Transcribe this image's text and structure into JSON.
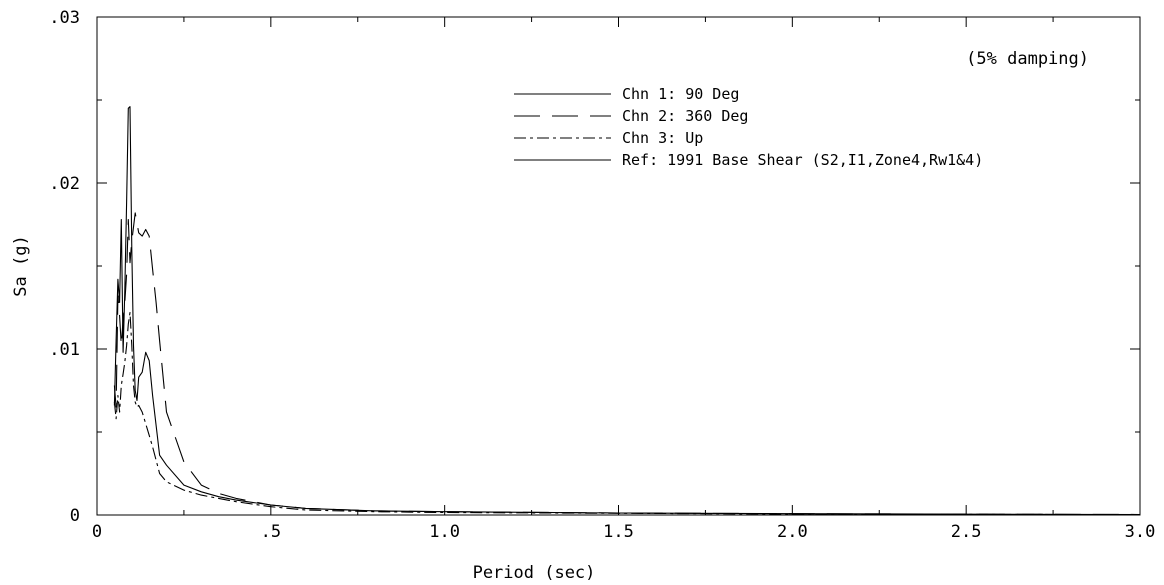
{
  "chart_data": {
    "type": "line",
    "title": "",
    "xlabel": "Period (sec)",
    "ylabel": "Sa (g)",
    "xlim": [
      0,
      3.0
    ],
    "ylim": [
      0,
      0.03
    ],
    "grid": false,
    "legend_position": "top-center",
    "annotation": "(5% damping)",
    "x_ticks": [
      {
        "value": 0,
        "label": "0"
      },
      {
        "value": 0.5,
        "label": ".5"
      },
      {
        "value": 1.0,
        "label": "1.0"
      },
      {
        "value": 1.5,
        "label": "1.5"
      },
      {
        "value": 2.0,
        "label": "2.0"
      },
      {
        "value": 2.5,
        "label": "2.5"
      },
      {
        "value": 3.0,
        "label": "3.0"
      }
    ],
    "y_ticks": [
      {
        "value": 0,
        "label": "0"
      },
      {
        "value": 0.01,
        "label": ".01"
      },
      {
        "value": 0.02,
        "label": ".02"
      },
      {
        "value": 0.03,
        "label": ".03"
      }
    ],
    "series": [
      {
        "name": "Chn 1: 90 Deg",
        "dash": "solid",
        "x": [
          0.05,
          0.055,
          0.06,
          0.065,
          0.07,
          0.075,
          0.08,
          0.085,
          0.09,
          0.095,
          0.1,
          0.105,
          0.11,
          0.115,
          0.12,
          0.13,
          0.14,
          0.15,
          0.16,
          0.18,
          0.2,
          0.25,
          0.3,
          0.35,
          0.4,
          0.5,
          0.6,
          0.8,
          1.0,
          1.5,
          2.0,
          2.5,
          3.0
        ],
        "y": [
          0.0066,
          0.0105,
          0.0142,
          0.0128,
          0.0178,
          0.0098,
          0.0135,
          0.0188,
          0.0245,
          0.0246,
          0.016,
          0.0102,
          0.0075,
          0.0069,
          0.0083,
          0.0086,
          0.0098,
          0.0093,
          0.0072,
          0.0036,
          0.003,
          0.0018,
          0.0014,
          0.0011,
          0.0009,
          0.0006,
          0.0004,
          0.00025,
          0.0002,
          0.00012,
          8e-05,
          5e-05,
          3e-05
        ]
      },
      {
        "name": "Chn 2: 360 Deg",
        "dash": "long-dash",
        "x": [
          0.05,
          0.055,
          0.06,
          0.065,
          0.07,
          0.075,
          0.08,
          0.085,
          0.09,
          0.095,
          0.1,
          0.11,
          0.12,
          0.13,
          0.14,
          0.15,
          0.16,
          0.17,
          0.18,
          0.2,
          0.25,
          0.3,
          0.35,
          0.4,
          0.5,
          0.6,
          0.8,
          1.0,
          1.5,
          2.0,
          2.5,
          3.0
        ],
        "y": [
          0.0078,
          0.0065,
          0.0132,
          0.012,
          0.0102,
          0.0118,
          0.0128,
          0.0145,
          0.0178,
          0.0152,
          0.0165,
          0.0182,
          0.017,
          0.0168,
          0.0172,
          0.0168,
          0.0148,
          0.0128,
          0.0105,
          0.0062,
          0.0032,
          0.0018,
          0.0013,
          0.001,
          0.0006,
          0.0004,
          0.00025,
          0.0002,
          0.00012,
          8e-05,
          5e-05,
          3e-05
        ]
      },
      {
        "name": "Chn 3: Up",
        "dash": "dash-dot",
        "x": [
          0.05,
          0.055,
          0.06,
          0.065,
          0.07,
          0.075,
          0.08,
          0.085,
          0.09,
          0.095,
          0.1,
          0.105,
          0.11,
          0.115,
          0.12,
          0.13,
          0.14,
          0.15,
          0.16,
          0.18,
          0.2,
          0.25,
          0.3,
          0.35,
          0.4,
          0.5,
          0.6,
          0.8,
          1.0,
          1.5,
          2.0,
          2.5,
          3.0
        ],
        "y": [
          0.0068,
          0.0058,
          0.0072,
          0.0062,
          0.0078,
          0.0085,
          0.0092,
          0.0102,
          0.0115,
          0.0122,
          0.0102,
          0.0078,
          0.0068,
          0.0065,
          0.0066,
          0.0062,
          0.0055,
          0.0048,
          0.0041,
          0.0025,
          0.002,
          0.0015,
          0.0012,
          0.001,
          0.0008,
          0.0005,
          0.0003,
          0.0002,
          0.00015,
          0.0001,
          6e-05,
          4e-05,
          2e-05
        ]
      },
      {
        "name": "Ref: 1991 Base Shear (S2,I1,Zone4,Rw1&4)",
        "dash": "solid",
        "x": [],
        "y": []
      }
    ]
  }
}
